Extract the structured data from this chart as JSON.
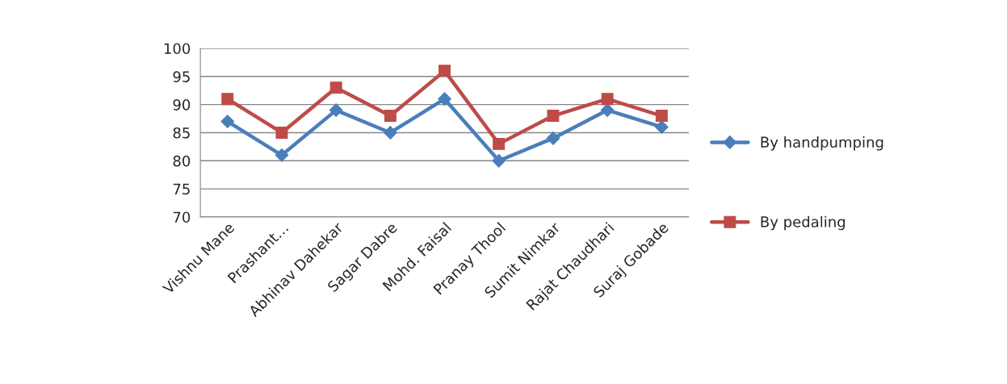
{
  "chart_data": {
    "type": "line",
    "categories": [
      "Vishnu Mane",
      "Prashant…",
      "Abhinav Dahekar",
      "Sagar Dabre",
      "Mohd. Faisal",
      "Pranay Thool",
      "Sumit Nimkar",
      "Rajat Chaudhari",
      "Suraj Gobade"
    ],
    "series": [
      {
        "name": "By handpumping",
        "color": "#4a7ebb",
        "marker": "diamond",
        "values": [
          87,
          81,
          89,
          85,
          91,
          80,
          84,
          89,
          86
        ]
      },
      {
        "name": "By pedaling",
        "color": "#be4b48",
        "marker": "square",
        "values": [
          91,
          85,
          93,
          88,
          96,
          83,
          88,
          91,
          88
        ]
      }
    ],
    "ylim": [
      70,
      100
    ],
    "yticks": [
      70,
      75,
      80,
      85,
      90,
      95,
      100
    ],
    "grid": "y",
    "legend": "right",
    "line_style": "solid"
  }
}
